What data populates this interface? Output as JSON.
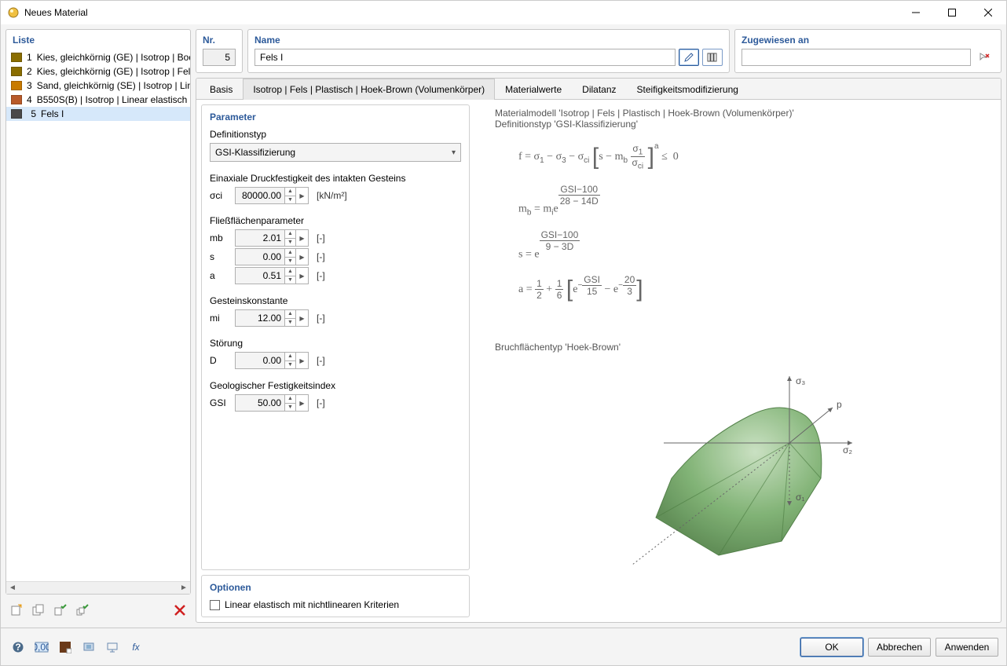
{
  "window": {
    "title": "Neues Material"
  },
  "list": {
    "header": "Liste",
    "items": [
      {
        "num": "1",
        "color": "#8a6d00",
        "label": "Kies, gleichkörnig (GE) | Isotrop | Bod"
      },
      {
        "num": "2",
        "color": "#8a6d00",
        "label": "Kies, gleichkörnig (GE) | Isotrop | Fels"
      },
      {
        "num": "3",
        "color": "#c87a00",
        "label": "Sand, gleichkörnig (SE) | Isotrop | Line"
      },
      {
        "num": "4",
        "color": "#b85a2a",
        "label": "B550S(B) | Isotrop | Linear elastisch"
      },
      {
        "num": "5",
        "color": "#4a4a4a",
        "label": "Fels I",
        "selected": true
      }
    ]
  },
  "fields": {
    "nr_label": "Nr.",
    "nr_value": "5",
    "name_label": "Name",
    "name_value": "Fels I",
    "assigned_label": "Zugewiesen an",
    "assigned_value": ""
  },
  "tabs": [
    {
      "label": "Basis",
      "active": false
    },
    {
      "label": "Isotrop | Fels | Plastisch | Hoek-Brown (Volumenkörper)",
      "active": true
    },
    {
      "label": "Materialwerte",
      "active": false
    },
    {
      "label": "Dilatanz",
      "active": false
    },
    {
      "label": "Steifigkeitsmodifizierung",
      "active": false
    }
  ],
  "params": {
    "header": "Parameter",
    "definitiontype_label": "Definitionstyp",
    "definitiontype_value": "GSI-Klassifizierung",
    "uniaxial_label": "Einaxiale Druckfestigkeit des intakten Gesteins",
    "sigma_ci": {
      "label": "σci",
      "value": "80000.00",
      "unit": "[kN/m²]"
    },
    "yield_label": "Fließflächenparameter",
    "mb": {
      "label": "mb",
      "value": "2.01",
      "unit": "[-]"
    },
    "s": {
      "label": "s",
      "value": "0.00",
      "unit": "[-]"
    },
    "a": {
      "label": "a",
      "value": "0.51",
      "unit": "[-]"
    },
    "rock_label": "Gesteinskonstante",
    "mi": {
      "label": "mi",
      "value": "12.00",
      "unit": "[-]"
    },
    "disturbance_label": "Störung",
    "D": {
      "label": "D",
      "value": "0.00",
      "unit": "[-]"
    },
    "gsi_label": "Geologischer Festigkeitsindex",
    "GSI": {
      "label": "GSI",
      "value": "50.00",
      "unit": "[-]"
    }
  },
  "options": {
    "header": "Optionen",
    "linear_elastic_label": "Linear elastisch mit nichtlinearen Kriterien",
    "linear_elastic_checked": false
  },
  "explanation": {
    "line1": "Materialmodell 'Isotrop | Fels | Plastisch | Hoek-Brown (Volumenkörper)'",
    "line2": "Definitionstyp 'GSI-Klassifizierung'",
    "surface_label": "Bruchflächentyp 'Hoek-Brown'"
  },
  "diagram": {
    "fill": "#6da05a",
    "fill_light": "#a9cfa0",
    "stroke": "#666",
    "axis_labels": {
      "sigma1": "σ₁",
      "sigma2": "σ₂",
      "sigma3": "σ₃",
      "p": "p"
    }
  },
  "buttons": {
    "ok": "OK",
    "cancel": "Abbrechen",
    "apply": "Anwenden"
  }
}
